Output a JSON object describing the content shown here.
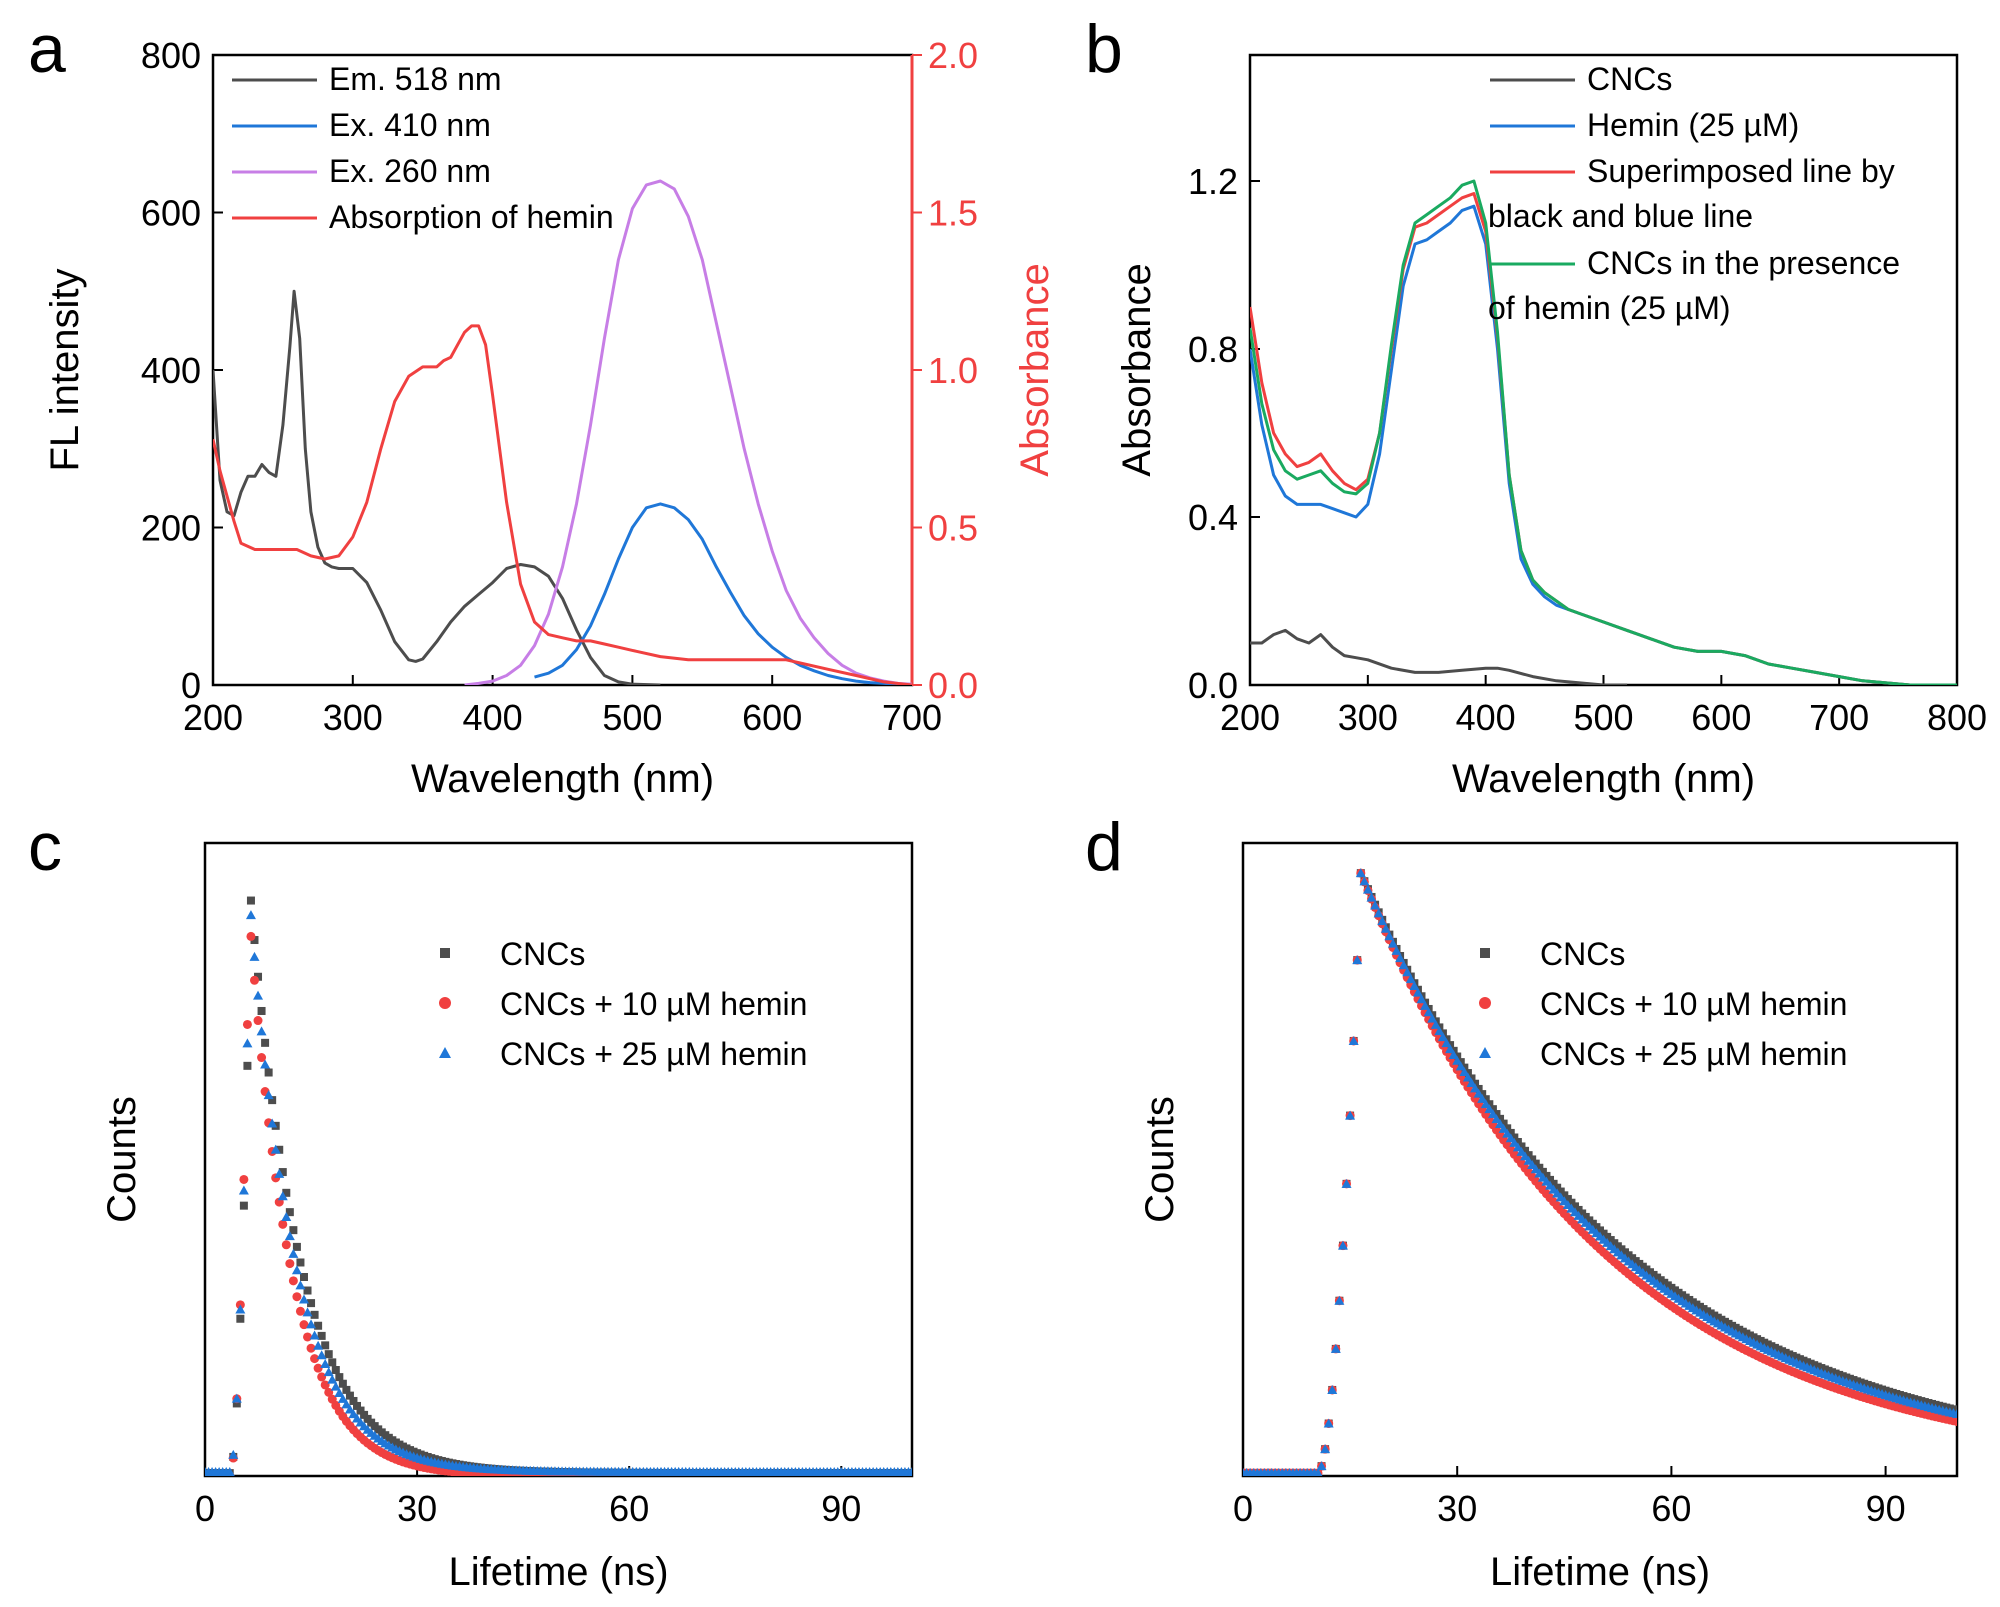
{
  "colors": {
    "black": "#4d4d4d",
    "blue": "#1f77d8",
    "purple": "#c77ee6",
    "red": "#f04040",
    "green": "#1aaa60",
    "axis": "#000000"
  },
  "chart_data": [
    {
      "type": "line",
      "panel_label": "a",
      "xlabel": "Wavelength (nm)",
      "ylabel": "FL intensity",
      "y2label": "Absorbance",
      "xlim": [
        200,
        700
      ],
      "ylim": [
        0,
        800
      ],
      "y2lim": [
        0,
        2.0
      ],
      "xticks": [
        "200",
        "300",
        "400",
        "500",
        "600",
        "700"
      ],
      "xtick_values": [
        200,
        300,
        400,
        500,
        600,
        700
      ],
      "yticks": [
        "0",
        "200",
        "400",
        "600",
        "800"
      ],
      "ytick_values": [
        0,
        200,
        400,
        600,
        800
      ],
      "y2ticks": [
        "0.0",
        "0.5",
        "1.0",
        "1.5",
        "2.0"
      ],
      "y2tick_values": [
        0,
        0.5,
        1.0,
        1.5,
        2.0
      ],
      "legend_position": "top-left",
      "series": [
        {
          "name": "Em. 518 nm",
          "color": "black",
          "axis": "left",
          "x": [
            200,
            205,
            210,
            215,
            220,
            225,
            230,
            235,
            240,
            245,
            250,
            255,
            258,
            262,
            266,
            270,
            275,
            280,
            285,
            290,
            300,
            310,
            320,
            330,
            340,
            345,
            350,
            360,
            370,
            380,
            390,
            400,
            410,
            420,
            430,
            440,
            450,
            460,
            470,
            480,
            490,
            500,
            520
          ],
          "y": [
            400,
            260,
            220,
            215,
            245,
            265,
            265,
            280,
            270,
            265,
            330,
            430,
            500,
            440,
            300,
            220,
            175,
            155,
            150,
            148,
            148,
            130,
            95,
            55,
            32,
            30,
            33,
            55,
            80,
            100,
            115,
            130,
            148,
            153,
            150,
            138,
            110,
            70,
            35,
            12,
            4,
            1,
            0
          ]
        },
        {
          "name": "Ex. 410 nm",
          "color": "blue",
          "axis": "left",
          "x": [
            430,
            440,
            450,
            460,
            470,
            480,
            490,
            500,
            510,
            520,
            530,
            540,
            550,
            560,
            570,
            580,
            590,
            600,
            610,
            620,
            630,
            640,
            650,
            660,
            670,
            680,
            690,
            700
          ],
          "y": [
            10,
            15,
            25,
            45,
            75,
            115,
            160,
            200,
            225,
            230,
            225,
            210,
            185,
            150,
            118,
            88,
            65,
            48,
            35,
            25,
            18,
            12,
            8,
            5,
            3,
            2,
            1,
            0
          ]
        },
        {
          "name": "Ex. 260 nm",
          "color": "purple",
          "axis": "left",
          "x": [
            380,
            390,
            400,
            410,
            420,
            430,
            440,
            450,
            460,
            470,
            480,
            490,
            500,
            510,
            520,
            530,
            540,
            550,
            560,
            570,
            580,
            590,
            600,
            610,
            620,
            630,
            640,
            650,
            660,
            670,
            680,
            690,
            700
          ],
          "y": [
            0,
            2,
            5,
            12,
            25,
            50,
            90,
            150,
            230,
            330,
            440,
            540,
            605,
            635,
            640,
            630,
            595,
            540,
            460,
            380,
            300,
            230,
            170,
            120,
            85,
            60,
            40,
            25,
            15,
            9,
            5,
            2,
            1
          ]
        },
        {
          "name": "Absorption of hemin",
          "color": "red",
          "axis": "right",
          "x": [
            200,
            205,
            210,
            215,
            220,
            230,
            240,
            250,
            260,
            270,
            280,
            290,
            300,
            310,
            320,
            330,
            340,
            350,
            360,
            365,
            370,
            375,
            380,
            385,
            390,
            395,
            400,
            410,
            420,
            430,
            440,
            450,
            460,
            470,
            480,
            490,
            500,
            520,
            540,
            560,
            580,
            600,
            610,
            620,
            640,
            660,
            680,
            700
          ],
          "y": [
            0.78,
            0.68,
            0.6,
            0.52,
            0.45,
            0.43,
            0.43,
            0.43,
            0.43,
            0.41,
            0.4,
            0.41,
            0.47,
            0.58,
            0.75,
            0.9,
            0.98,
            1.01,
            1.01,
            1.03,
            1.04,
            1.08,
            1.12,
            1.14,
            1.14,
            1.08,
            0.92,
            0.58,
            0.32,
            0.2,
            0.16,
            0.15,
            0.14,
            0.14,
            0.13,
            0.12,
            0.11,
            0.09,
            0.08,
            0.08,
            0.08,
            0.08,
            0.08,
            0.07,
            0.05,
            0.03,
            0.01,
            0.0
          ]
        }
      ]
    },
    {
      "type": "line",
      "panel_label": "b",
      "xlabel": "Wavelength (nm)",
      "ylabel": "Absorbance",
      "xlim": [
        200,
        800
      ],
      "ylim": [
        0,
        1.5
      ],
      "xticks": [
        "200",
        "300",
        "400",
        "500",
        "600",
        "700",
        "800"
      ],
      "xtick_values": [
        200,
        300,
        400,
        500,
        600,
        700,
        800
      ],
      "yticks": [
        "0.0",
        "0.4",
        "0.8",
        "1.2"
      ],
      "ytick_values": [
        0,
        0.4,
        0.8,
        1.2
      ],
      "legend_position": "top-right",
      "series": [
        {
          "name": "CNCs",
          "color": "black",
          "x": [
            200,
            210,
            220,
            230,
            240,
            250,
            260,
            270,
            280,
            290,
            300,
            320,
            340,
            360,
            380,
            400,
            410,
            420,
            440,
            460,
            480,
            500,
            520
          ],
          "y": [
            0.1,
            0.1,
            0.12,
            0.13,
            0.11,
            0.1,
            0.12,
            0.09,
            0.07,
            0.065,
            0.06,
            0.04,
            0.03,
            0.03,
            0.035,
            0.04,
            0.04,
            0.035,
            0.02,
            0.01,
            0.005,
            0.0,
            0.0
          ]
        },
        {
          "name": "Hemin (25 µM)",
          "color": "blue",
          "x": [
            200,
            210,
            220,
            230,
            240,
            250,
            260,
            270,
            280,
            290,
            300,
            310,
            320,
            330,
            340,
            350,
            360,
            370,
            380,
            390,
            400,
            410,
            420,
            430,
            440,
            450,
            460,
            470,
            480,
            500,
            520,
            540,
            560,
            580,
            600,
            620,
            640,
            660,
            680,
            700,
            720,
            740,
            760,
            780,
            800
          ],
          "y": [
            0.8,
            0.62,
            0.5,
            0.45,
            0.43,
            0.43,
            0.43,
            0.42,
            0.41,
            0.4,
            0.43,
            0.55,
            0.75,
            0.95,
            1.05,
            1.06,
            1.08,
            1.1,
            1.13,
            1.14,
            1.05,
            0.8,
            0.48,
            0.3,
            0.24,
            0.21,
            0.19,
            0.18,
            0.17,
            0.15,
            0.13,
            0.11,
            0.09,
            0.08,
            0.08,
            0.07,
            0.05,
            0.04,
            0.03,
            0.02,
            0.01,
            0.005,
            0.0,
            0.0,
            0.0
          ]
        },
        {
          "name": "Superimposed line by black and blue line",
          "color": "red",
          "x": [
            200,
            210,
            220,
            230,
            240,
            250,
            260,
            270,
            280,
            290,
            300,
            310,
            320,
            330,
            340,
            350,
            360,
            370,
            380,
            390,
            400,
            410,
            420,
            430,
            440,
            450,
            460,
            470,
            480,
            500,
            520,
            540,
            560,
            580,
            600,
            620,
            640,
            660,
            680,
            700,
            720,
            740,
            760,
            780,
            800
          ],
          "y": [
            0.9,
            0.72,
            0.6,
            0.55,
            0.52,
            0.53,
            0.55,
            0.51,
            0.48,
            0.465,
            0.49,
            0.6,
            0.8,
            0.99,
            1.09,
            1.1,
            1.12,
            1.14,
            1.16,
            1.17,
            1.08,
            0.83,
            0.5,
            0.32,
            0.25,
            0.22,
            0.2,
            0.18,
            0.17,
            0.15,
            0.13,
            0.11,
            0.09,
            0.08,
            0.08,
            0.07,
            0.05,
            0.04,
            0.03,
            0.02,
            0.01,
            0.005,
            0.0,
            0.0,
            0.0
          ]
        },
        {
          "name": "CNCs in the presence of hemin (25 µM)",
          "color": "green",
          "x": [
            200,
            210,
            220,
            230,
            240,
            250,
            260,
            270,
            280,
            290,
            300,
            310,
            320,
            330,
            340,
            350,
            360,
            370,
            380,
            390,
            400,
            410,
            420,
            430,
            440,
            450,
            460,
            470,
            480,
            500,
            520,
            540,
            560,
            580,
            600,
            620,
            640,
            660,
            680,
            700,
            720,
            740,
            760,
            780,
            800
          ],
          "y": [
            0.85,
            0.67,
            0.56,
            0.51,
            0.49,
            0.5,
            0.51,
            0.48,
            0.46,
            0.455,
            0.48,
            0.6,
            0.81,
            1.0,
            1.1,
            1.12,
            1.14,
            1.16,
            1.19,
            1.2,
            1.1,
            0.84,
            0.5,
            0.32,
            0.25,
            0.22,
            0.2,
            0.18,
            0.17,
            0.15,
            0.13,
            0.11,
            0.09,
            0.08,
            0.08,
            0.07,
            0.05,
            0.04,
            0.03,
            0.02,
            0.01,
            0.005,
            0.0,
            0.0,
            0.0
          ]
        }
      ]
    },
    {
      "type": "scatter",
      "panel_label": "c",
      "xlabel": "Lifetime (ns)",
      "ylabel": "Counts",
      "xlim": [
        0,
        100
      ],
      "ylim": [
        0,
        1.1
      ],
      "xticks": [
        "0",
        "30",
        "60",
        "90"
      ],
      "xtick_values": [
        0,
        30,
        60,
        90
      ],
      "legend_position": "top-right",
      "series": [
        {
          "name": "CNCs",
          "color": "black",
          "marker": "square",
          "peak_ns": 6.5,
          "peak": 1.0,
          "decay_ns": 7.0,
          "rise_start_ns": 3.6,
          "baseline": 0.005
        },
        {
          "name": "CNCs + 10 µM hemin",
          "color": "red",
          "marker": "circle",
          "peak_ns": 6.3,
          "peak": 0.97,
          "decay_ns": 5.9,
          "rise_start_ns": 3.6,
          "baseline": 0.0
        },
        {
          "name": "CNCs + 25 µM hemin",
          "color": "blue",
          "marker": "triangle",
          "peak_ns": 6.4,
          "peak": 0.99,
          "decay_ns": 6.4,
          "rise_start_ns": 3.6,
          "baseline": 0.007
        }
      ]
    },
    {
      "type": "scatter",
      "panel_label": "d",
      "xlabel": "Lifetime (ns)",
      "ylabel": "Counts",
      "xlim": [
        0,
        100
      ],
      "ylim": [
        0,
        1.05
      ],
      "xticks": [
        "0",
        "30",
        "60",
        "90"
      ],
      "xtick_values": [
        0,
        30,
        60,
        90
      ],
      "legend_position": "top-right",
      "series": [
        {
          "name": "CNCs",
          "color": "black",
          "marker": "square",
          "peak_ns": 16.5,
          "peak": 1.0,
          "decay_ns": 37.0,
          "rise_start_ns": 10.5,
          "baseline": 0.005
        },
        {
          "name": "CNCs + 10 µM hemin",
          "color": "red",
          "marker": "circle",
          "peak_ns": 16.5,
          "peak": 1.0,
          "decay_ns": 34.0,
          "rise_start_ns": 10.5,
          "baseline": 0.005
        },
        {
          "name": "CNCs + 25 µM hemin",
          "color": "blue",
          "marker": "triangle",
          "peak_ns": 16.5,
          "peak": 1.0,
          "decay_ns": 36.0,
          "rise_start_ns": 10.5,
          "baseline": 0.005
        }
      ]
    }
  ]
}
